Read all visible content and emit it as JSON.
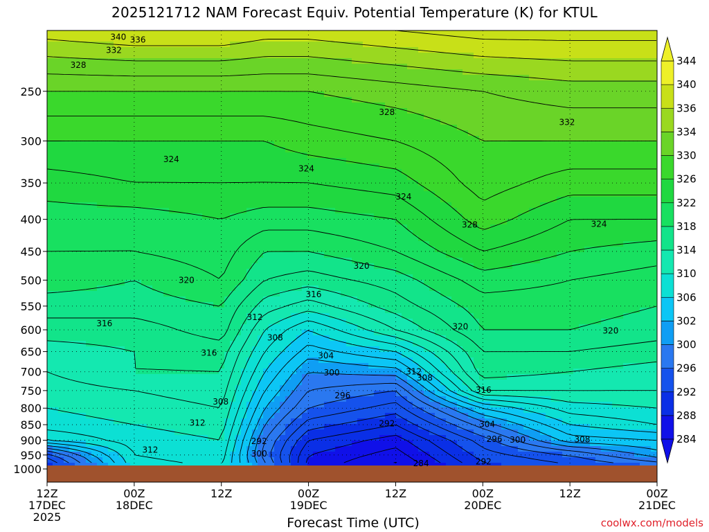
{
  "title": "2025121712 NAM Forecast Equiv. Potential Temperature (K) for KTUL",
  "credit": "coolwx.com/models",
  "colors": {
    "background": "#ffffff",
    "ground": "#a0522d",
    "contour": "#000000",
    "credit": "#e0202a"
  },
  "chart_data": {
    "type": "heatmap",
    "title": "2025121712 NAM Forecast Equiv. Potential Temperature (K) for KTUL",
    "xlabel": "Forecast Time (UTC)",
    "ylabel": "",
    "x_hours": [
      0,
      12,
      24,
      36,
      48,
      60,
      72,
      84
    ],
    "x_ticks": [
      {
        "h": 0,
        "lines": [
          "12Z",
          "17DEC",
          "2025"
        ]
      },
      {
        "h": 12,
        "lines": [
          "00Z",
          "18DEC"
        ]
      },
      {
        "h": 24,
        "lines": [
          "12Z"
        ]
      },
      {
        "h": 36,
        "lines": [
          "00Z",
          "19DEC"
        ]
      },
      {
        "h": 48,
        "lines": [
          "12Z"
        ]
      },
      {
        "h": 60,
        "lines": [
          "00Z",
          "20DEC"
        ]
      },
      {
        "h": 72,
        "lines": [
          "12Z"
        ]
      },
      {
        "h": 84,
        "lines": [
          "00Z",
          "21DEC"
        ]
      }
    ],
    "xlim": [
      0,
      84
    ],
    "y_ticks": [
      250,
      300,
      350,
      400,
      450,
      500,
      550,
      600,
      650,
      700,
      750,
      800,
      850,
      900,
      950,
      1000
    ],
    "ylim": [
      200,
      1000
    ],
    "y_scale": "log-pressure",
    "grid": true,
    "colorbar": {
      "levels": [
        284,
        288,
        292,
        296,
        300,
        302,
        306,
        310,
        314,
        318,
        322,
        326,
        330,
        334,
        336,
        340,
        344
      ],
      "colors": [
        "#1010e8",
        "#0a2fe6",
        "#1552ec",
        "#2a78f0",
        "#0f9ef4",
        "#0cc6f5",
        "#0ce0d4",
        "#14e8b0",
        "#12e48a",
        "#18e060",
        "#20d840",
        "#3ad82c",
        "#6ad428",
        "#9ad820",
        "#c8e018",
        "#eef028"
      ],
      "extends": "both",
      "position": "right"
    },
    "profiles": [
      {
        "h": 0,
        "p": [
          1000,
          950,
          900,
          850,
          800,
          750,
          700,
          650,
          600,
          550,
          500,
          450,
          400,
          350,
          300,
          250,
          200
        ],
        "v": [
          290,
          295,
          306,
          309,
          310,
          311,
          312,
          313,
          315,
          317,
          319,
          320,
          321,
          323,
          326,
          330,
          337
        ]
      },
      {
        "h": 12,
        "p": [
          1000,
          950,
          900,
          850,
          800,
          750,
          700,
          650,
          600,
          550,
          500,
          450,
          400,
          350,
          300,
          250,
          200
        ],
        "v": [
          307,
          308,
          309,
          310,
          311,
          312,
          314,
          314,
          315,
          317,
          318,
          320,
          321,
          324,
          326,
          330,
          338
        ]
      },
      {
        "h": 24,
        "p": [
          1000,
          950,
          900,
          850,
          800,
          750,
          700,
          650,
          600,
          550,
          500,
          450,
          400,
          350,
          300,
          250,
          200
        ],
        "v": [
          308,
          309,
          310,
          311,
          312,
          313,
          314,
          315,
          317,
          318,
          320,
          321,
          322,
          324,
          326,
          330,
          338
        ]
      },
      {
        "h": 30,
        "p": [
          1000,
          950,
          900,
          850,
          800,
          750,
          700,
          650,
          600,
          550,
          500,
          450,
          400,
          350,
          300,
          250,
          200
        ],
        "v": [
          299,
          297,
          298,
          300,
          302,
          304,
          306,
          308,
          310,
          313,
          316,
          318,
          321,
          324,
          326,
          330,
          337
        ]
      },
      {
        "h": 36,
        "p": [
          1000,
          950,
          900,
          850,
          800,
          750,
          700,
          650,
          600,
          550,
          500,
          450,
          400,
          350,
          300,
          250,
          200
        ],
        "v": [
          287,
          288,
          290,
          293,
          296,
          298,
          300,
          303,
          306,
          311,
          315,
          318,
          321,
          324,
          327,
          330,
          337
        ]
      },
      {
        "h": 48,
        "p": [
          1000,
          950,
          900,
          850,
          800,
          750,
          700,
          650,
          600,
          550,
          500,
          450,
          400,
          350,
          300,
          250,
          200
        ],
        "v": [
          283,
          285,
          287,
          290,
          293,
          296,
          301,
          306,
          312,
          315,
          317,
          320,
          322,
          325,
          328,
          331,
          338
        ]
      },
      {
        "h": 60,
        "p": [
          1000,
          950,
          900,
          850,
          800,
          750,
          700,
          650,
          600,
          550,
          500,
          450,
          400,
          350,
          300,
          250,
          200
        ],
        "v": [
          291,
          293,
          295,
          299,
          304,
          312,
          315,
          316,
          318,
          319,
          321,
          324,
          327,
          329,
          330,
          332,
          339
        ]
      },
      {
        "h": 72,
        "p": [
          1000,
          950,
          900,
          850,
          800,
          750,
          700,
          650,
          600,
          550,
          500,
          450,
          400,
          350,
          300,
          250,
          200
        ],
        "v": [
          293,
          296,
          303,
          306,
          309,
          312,
          314,
          316,
          318,
          319,
          320,
          322,
          324,
          327,
          330,
          333,
          339
        ]
      },
      {
        "h": 84,
        "p": [
          1000,
          950,
          900,
          850,
          800,
          750,
          700,
          650,
          600,
          550,
          500,
          450,
          400,
          350,
          300,
          250,
          200
        ],
        "v": [
          295,
          301,
          304,
          308,
          310,
          312,
          313,
          315,
          317,
          318,
          319,
          321,
          324,
          327,
          330,
          333,
          339
        ]
      }
    ],
    "contour_labels": [
      {
        "h": 9.8,
        "p": 205,
        "text": "340"
      },
      {
        "h": 12.5,
        "p": 207,
        "text": "336"
      },
      {
        "h": 9.2,
        "p": 215,
        "text": "332"
      },
      {
        "h": 4.3,
        "p": 227,
        "text": "328"
      },
      {
        "h": 17.1,
        "p": 321,
        "text": "324"
      },
      {
        "h": 35.7,
        "p": 332,
        "text": "324"
      },
      {
        "h": 46.8,
        "p": 270,
        "text": "328"
      },
      {
        "h": 71.6,
        "p": 280,
        "text": "332"
      },
      {
        "h": 49.1,
        "p": 368,
        "text": "324"
      },
      {
        "h": 58.2,
        "p": 408,
        "text": "328"
      },
      {
        "h": 76.0,
        "p": 407,
        "text": "324"
      },
      {
        "h": 43.3,
        "p": 475,
        "text": "320"
      },
      {
        "h": 19.2,
        "p": 500,
        "text": "320"
      },
      {
        "h": 36.7,
        "p": 527,
        "text": "316"
      },
      {
        "h": 7.9,
        "p": 586,
        "text": "316"
      },
      {
        "h": 22.3,
        "p": 653,
        "text": "316"
      },
      {
        "h": 28.6,
        "p": 573,
        "text": "312"
      },
      {
        "h": 31.4,
        "p": 618,
        "text": "308"
      },
      {
        "h": 38.4,
        "p": 660,
        "text": "304"
      },
      {
        "h": 39.2,
        "p": 702,
        "text": "300"
      },
      {
        "h": 40.7,
        "p": 764,
        "text": "296"
      },
      {
        "h": 50.5,
        "p": 700,
        "text": "312"
      },
      {
        "h": 52.0,
        "p": 716,
        "text": "308"
      },
      {
        "h": 56.9,
        "p": 593,
        "text": "320"
      },
      {
        "h": 60.1,
        "p": 748,
        "text": "316"
      },
      {
        "h": 77.6,
        "p": 602,
        "text": "320"
      },
      {
        "h": 46.8,
        "p": 847,
        "text": "292"
      },
      {
        "h": 60.6,
        "p": 849,
        "text": "304"
      },
      {
        "h": 61.6,
        "p": 897,
        "text": "296"
      },
      {
        "h": 64.8,
        "p": 899,
        "text": "300"
      },
      {
        "h": 73.7,
        "p": 898,
        "text": "308"
      },
      {
        "h": 23.9,
        "p": 781,
        "text": "308"
      },
      {
        "h": 20.7,
        "p": 844,
        "text": "312"
      },
      {
        "h": 14.2,
        "p": 932,
        "text": "312"
      },
      {
        "h": 29.2,
        "p": 903,
        "text": "292"
      },
      {
        "h": 29.2,
        "p": 945,
        "text": "300"
      },
      {
        "h": 51.5,
        "p": 980,
        "text": "284"
      },
      {
        "h": 60.1,
        "p": 974,
        "text": "292"
      }
    ]
  }
}
